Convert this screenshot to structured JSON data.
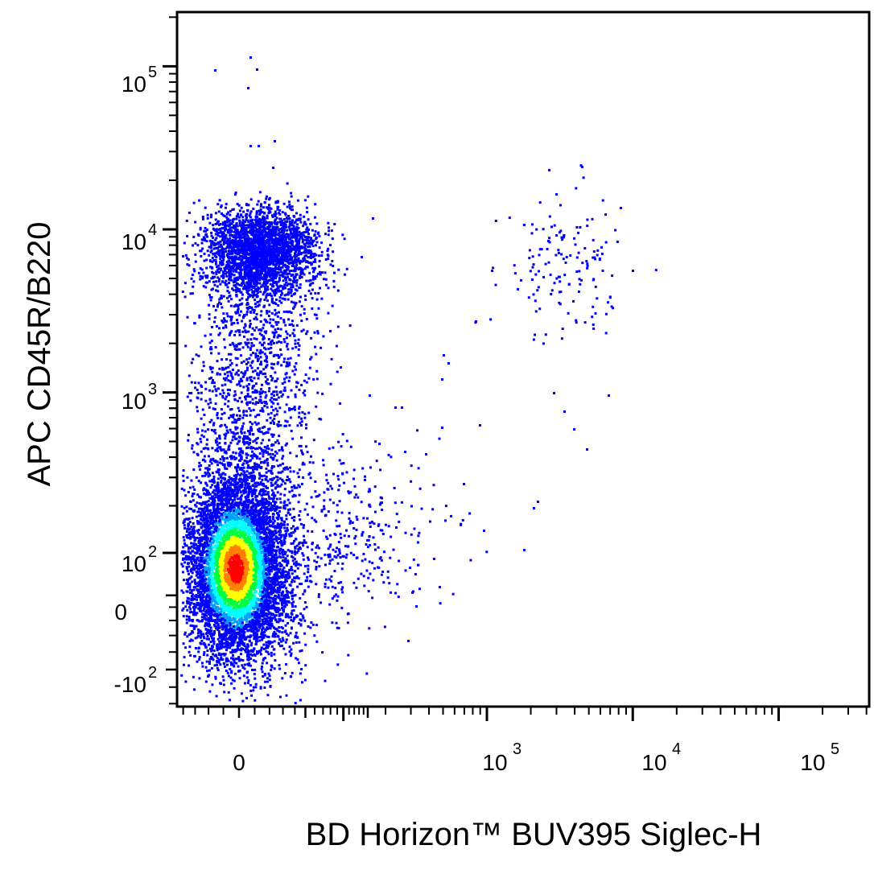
{
  "chart_data": {
    "type": "scatter",
    "subtype": "flow-cytometry-density-dot-plot",
    "xlabel": "BD Horizon™ BUV395 Siglec-H",
    "ylabel": "APC CD45R/B220",
    "x_scale": "biexponential",
    "y_scale": "biexponential",
    "xlim": [
      -150,
      200000
    ],
    "ylim": [
      -200,
      200000
    ],
    "grid": false,
    "legend": "none",
    "x_ticks": [
      {
        "base": "0",
        "exp": ""
      },
      {
        "base": "10",
        "exp": "3"
      },
      {
        "base": "10",
        "exp": "4"
      },
      {
        "base": "10",
        "exp": "5"
      }
    ],
    "y_ticks": [
      {
        "base": "10",
        "exp": "5"
      },
      {
        "base": "10",
        "exp": "4"
      },
      {
        "base": "10",
        "exp": "3"
      },
      {
        "base": "10",
        "exp": "2"
      },
      {
        "base": "0",
        "exp": ""
      },
      {
        "base": "-10",
        "exp": "2"
      }
    ],
    "density_colors": [
      "#0000ff",
      "#00a0ff",
      "#00ffff",
      "#00ff40",
      "#ffff00",
      "#ff8000",
      "#ff0000"
    ],
    "populations": [
      {
        "description": "main negative population",
        "center": [
          15,
          85
        ],
        "density": "very high"
      },
      {
        "description": "CD45R/B220 high population",
        "center": [
          60,
          7000
        ],
        "density": "high"
      },
      {
        "description": "Siglec-H positive population",
        "center": [
          2800,
          6000
        ],
        "density": "sparse"
      }
    ]
  }
}
